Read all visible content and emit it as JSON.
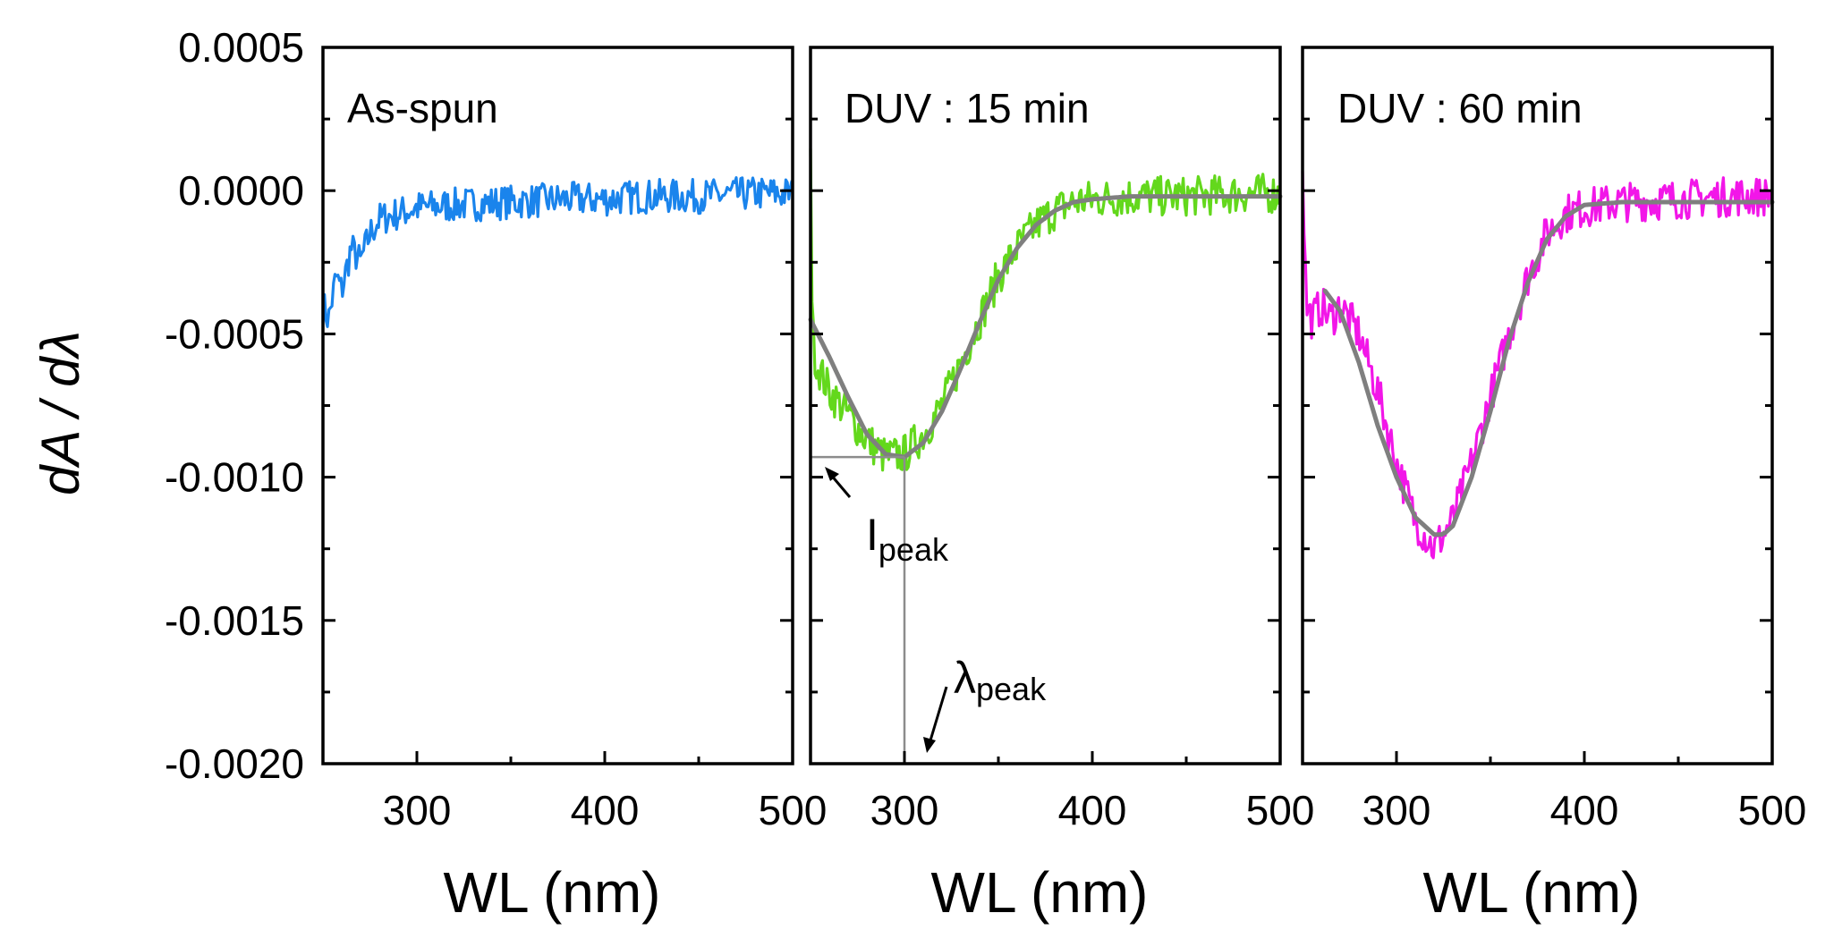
{
  "ylabel": "dA / dλ",
  "colors": {
    "as_spun": "#1a84ec",
    "duv15": "#63d81c",
    "duv60": "#f216e8",
    "fit": "#7f7f7f",
    "axis": "#000000"
  },
  "y_tick_labels": [
    "0.0005",
    "0.0000",
    "-0.0005",
    "-0.0010",
    "-0.0015",
    "-0.0020"
  ],
  "annotations": {
    "i_peak_main": "I",
    "i_peak_sub": "peak",
    "lambda_peak_main": "λ",
    "lambda_peak_sub": "peak"
  },
  "chart_data": [
    {
      "type": "line",
      "panel_label": "As-spun",
      "xlabel": "WL (nm)",
      "ylabel": "dA / dλ",
      "xlim": [
        250,
        500
      ],
      "ylim": [
        -0.002,
        0.0005
      ],
      "x_ticks": [
        300,
        400,
        500
      ],
      "y_ticks": [
        0.0005,
        0.0,
        -0.0005,
        -0.001,
        -0.0015,
        -0.002
      ],
      "grid": false,
      "series": [
        {
          "role": "data",
          "color": "#1a84ec",
          "x": [
            250,
            253,
            257,
            260,
            265,
            270,
            275,
            280,
            290,
            300,
            320,
            350,
            380,
            400,
            420,
            450,
            480,
            490,
            500
          ],
          "y": [
            -0.0004,
            -0.00045,
            -0.0003,
            -0.00035,
            -0.0002,
            -0.00025,
            -0.00015,
            -0.0001,
            -8e-05,
            -6e-05,
            -5e-05,
            -4e-05,
            -3e-05,
            -3e-05,
            -2e-05,
            -2e-05,
            -1e-05,
            -1e-05,
            -1e-05
          ]
        }
      ]
    },
    {
      "type": "line",
      "panel_label": "DUV : 15 min",
      "xlabel": "WL (nm)",
      "xlim": [
        250,
        500
      ],
      "ylim": [
        -0.002,
        0.0005
      ],
      "x_ticks": [
        300,
        400,
        500
      ],
      "grid": false,
      "series": [
        {
          "role": "data",
          "color": "#63d81c",
          "x": [
            250,
            251,
            253,
            260,
            270,
            280,
            290,
            300,
            310,
            320,
            330,
            340,
            350,
            360,
            370,
            380,
            390,
            400,
            420,
            450,
            480,
            500
          ],
          "y": [
            0.0002,
            -0.0005,
            -0.0006,
            -0.0007,
            -0.00078,
            -0.00087,
            -0.00093,
            -0.00092,
            -0.00085,
            -0.00075,
            -0.0006,
            -0.00045,
            -0.0003,
            -0.0002,
            -0.00012,
            -7e-05,
            -4e-05,
            -3e-05,
            -2e-05,
            -2e-05,
            -1e-05,
            -1e-05
          ]
        },
        {
          "role": "fit",
          "color": "#7f7f7f",
          "x": [
            250,
            260,
            270,
            280,
            290,
            300,
            310,
            320,
            330,
            340,
            350,
            360,
            370,
            380,
            390,
            400,
            420,
            450,
            500
          ],
          "y": [
            -0.00045,
            -0.00058,
            -0.00072,
            -0.00085,
            -0.00092,
            -0.00093,
            -0.00088,
            -0.00077,
            -0.00062,
            -0.00046,
            -0.00031,
            -0.0002,
            -0.00012,
            -7e-05,
            -4e-05,
            -3e-05,
            -2e-05,
            -2e-05,
            -2e-05
          ]
        }
      ],
      "peak": {
        "x": 300,
        "y": -0.00093
      }
    },
    {
      "type": "line",
      "panel_label": "DUV : 60 min",
      "xlabel": "WL (nm)",
      "xlim": [
        250,
        500
      ],
      "ylim": [
        -0.002,
        0.0005
      ],
      "x_ticks": [
        300,
        400,
        500
      ],
      "grid": false,
      "series": [
        {
          "role": "data",
          "color": "#f216e8",
          "x": [
            250,
            252,
            255,
            260,
            265,
            270,
            280,
            290,
            300,
            310,
            320,
            330,
            340,
            350,
            360,
            370,
            380,
            390,
            400,
            420,
            450,
            480,
            500
          ],
          "y": [
            0.0001,
            -0.0004,
            -0.00045,
            -0.0004,
            -0.00045,
            -0.0004,
            -0.0005,
            -0.0007,
            -0.00095,
            -0.00115,
            -0.00125,
            -0.00115,
            -0.00095,
            -0.00072,
            -0.0005,
            -0.0003,
            -0.00015,
            -8e-05,
            -6e-05,
            -4e-05,
            -3e-05,
            -2e-05,
            -2e-05
          ]
        },
        {
          "role": "fit",
          "color": "#7f7f7f",
          "x": [
            262,
            270,
            280,
            290,
            300,
            310,
            320,
            325,
            330,
            340,
            350,
            360,
            370,
            380,
            390,
            400,
            420,
            450,
            500
          ],
          "y": [
            -0.00035,
            -0.00042,
            -0.0006,
            -0.00082,
            -0.001,
            -0.00114,
            -0.0012,
            -0.0012,
            -0.00117,
            -0.001,
            -0.00077,
            -0.00052,
            -0.00032,
            -0.00017,
            -9e-05,
            -5e-05,
            -4e-05,
            -4e-05,
            -4e-05
          ]
        }
      ]
    }
  ]
}
